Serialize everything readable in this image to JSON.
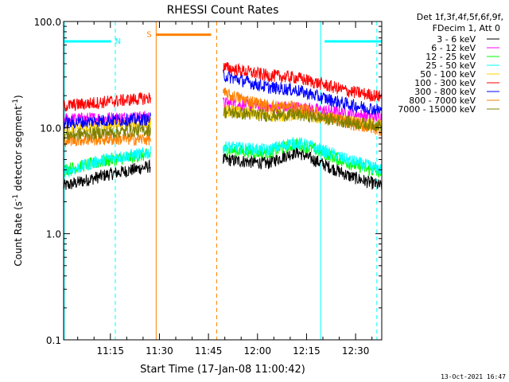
{
  "chart_data": {
    "type": "line",
    "title": "RHESSI Count Rates",
    "xlabel": "Start Time (17-Jan-08 11:00:42)",
    "ylabel_main": "Count Rate (s",
    "ylabel_sup1": "-1",
    "ylabel_mid": " detector segment",
    "ylabel_sup2": "-1",
    "ylabel_end": ")",
    "y_scale": "log",
    "ylim": [
      0.1,
      100.0
    ],
    "y_ticks": [
      "0.1",
      "1.0",
      "10.0",
      "100.0"
    ],
    "x_range_min": [
      0.7,
      98.0
    ],
    "x_ticks": [
      {
        "min": 15,
        "label": "11:15"
      },
      {
        "min": 30,
        "label": "11:30"
      },
      {
        "min": 45,
        "label": "11:45"
      },
      {
        "min": 60,
        "label": "12:00"
      },
      {
        "min": 75,
        "label": "12:15"
      },
      {
        "min": 90,
        "label": "12:30"
      }
    ],
    "legend_header": [
      "Det 1f,3f,4f,5f,6f,9f,",
      "FDecim 1, Att 0"
    ],
    "legend_position": "right",
    "series": [
      {
        "name": "3 - 6 keV",
        "color": "#000000",
        "data": [
          [
            0.7,
            2.8
          ],
          [
            14,
            3.6
          ],
          [
            27,
            4.3
          ],
          [
            49.5,
            5.0
          ],
          [
            63,
            4.6
          ],
          [
            69,
            5.5
          ],
          [
            72,
            5.9
          ],
          [
            77,
            5.0
          ],
          [
            88,
            3.5
          ],
          [
            98,
            2.8
          ]
        ]
      },
      {
        "name": "6 - 12 keV",
        "color": "#ff00ff",
        "data": [
          [
            0.7,
            12.0
          ],
          [
            14,
            12.3
          ],
          [
            27,
            12.6
          ],
          [
            49.5,
            17.0
          ],
          [
            63,
            15.5
          ],
          [
            72,
            15.5
          ],
          [
            80,
            14.5
          ],
          [
            88,
            13.5
          ],
          [
            98,
            12.5
          ]
        ]
      },
      {
        "name": "12 - 25 keV",
        "color": "#00ff00",
        "data": [
          [
            0.7,
            4.0
          ],
          [
            14,
            4.9
          ],
          [
            27,
            5.6
          ],
          [
            49.5,
            6.2
          ],
          [
            63,
            5.8
          ],
          [
            69,
            6.6
          ],
          [
            72,
            7.0
          ],
          [
            77,
            6.3
          ],
          [
            88,
            4.6
          ],
          [
            98,
            3.7
          ]
        ]
      },
      {
        "name": "25 - 50 keV",
        "color": "#00ffff",
        "data": [
          [
            0.7,
            3.8
          ],
          [
            14,
            5.1
          ],
          [
            27,
            5.8
          ],
          [
            49.5,
            6.6
          ],
          [
            63,
            6.1
          ],
          [
            69,
            7.0
          ],
          [
            72,
            7.2
          ],
          [
            77,
            6.6
          ],
          [
            88,
            4.9
          ],
          [
            98,
            4.0
          ]
        ]
      },
      {
        "name": "50 - 100 keV",
        "color": "#ffd000",
        "data": [
          [
            0.7,
            9.5
          ],
          [
            14,
            10.4
          ],
          [
            27,
            11.0
          ],
          [
            49.5,
            14.5
          ],
          [
            63,
            13.0
          ],
          [
            72,
            13.2
          ],
          [
            80,
            12.3
          ],
          [
            88,
            11.4
          ],
          [
            98,
            10.5
          ]
        ]
      },
      {
        "name": "100 - 300 keV",
        "color": "#ff0000",
        "data": [
          [
            0.7,
            16.0
          ],
          [
            14,
            17.5
          ],
          [
            27,
            19.0
          ],
          [
            49.5,
            37.0
          ],
          [
            63,
            31.0
          ],
          [
            72,
            29.5
          ],
          [
            80,
            25.5
          ],
          [
            88,
            22.0
          ],
          [
            98,
            19.5
          ]
        ]
      },
      {
        "name": "300 - 800 keV",
        "color": "#0000ff",
        "data": [
          [
            0.7,
            11.0
          ],
          [
            14,
            11.7
          ],
          [
            27,
            12.0
          ],
          [
            49.5,
            31.0
          ],
          [
            63,
            24.0
          ],
          [
            72,
            22.5
          ],
          [
            80,
            19.0
          ],
          [
            88,
            16.5
          ],
          [
            98,
            14.5
          ]
        ]
      },
      {
        "name": "800 - 7000 keV",
        "color": "#ff8000",
        "data": [
          [
            0.7,
            7.6
          ],
          [
            14,
            7.8
          ],
          [
            27,
            7.8
          ],
          [
            49.5,
            21.0
          ],
          [
            63,
            16.0
          ],
          [
            72,
            15.5
          ],
          [
            80,
            13.0
          ],
          [
            88,
            11.0
          ],
          [
            98,
            9.5
          ]
        ]
      },
      {
        "name": "7000 - 15000 keV",
        "color": "#808000",
        "data": [
          [
            0.7,
            8.5
          ],
          [
            14,
            9.0
          ],
          [
            27,
            9.5
          ],
          [
            49.5,
            14.0
          ],
          [
            63,
            13.0
          ],
          [
            72,
            13.3
          ],
          [
            80,
            12.3
          ],
          [
            88,
            11.2
          ],
          [
            98,
            10.5
          ]
        ]
      }
    ],
    "attenuator_segment": {
      "color": "#ff8000",
      "x": [
        29.0,
        45.8
      ],
      "y": 75.0,
      "label": "S"
    },
    "night_segments": [
      {
        "color": "#00ffff",
        "x": [
          0.7,
          15.2
        ],
        "y": 65.0,
        "label": "N"
      },
      {
        "color": "#00ffff",
        "x": [
          80.5,
          98.0
        ],
        "y": 65.0,
        "label": ""
      }
    ],
    "vertical_markers": [
      {
        "x": 0.9,
        "color": "#00ffff",
        "style": "solid"
      },
      {
        "x": 16.5,
        "color": "#00ffff",
        "style": "dashed"
      },
      {
        "x": 29.0,
        "color": "#ff8000",
        "style": "solid"
      },
      {
        "x": 47.5,
        "color": "#ff8000",
        "style": "dashed"
      },
      {
        "x": 79.3,
        "color": "#00ffff",
        "style": "solid"
      },
      {
        "x": 96.5,
        "color": "#00ffff",
        "style": "dashed"
      }
    ],
    "gaps_min": [
      [
        27.3,
        49.5
      ]
    ],
    "footer_timestamp": "13-Oct-2021 16:47"
  }
}
